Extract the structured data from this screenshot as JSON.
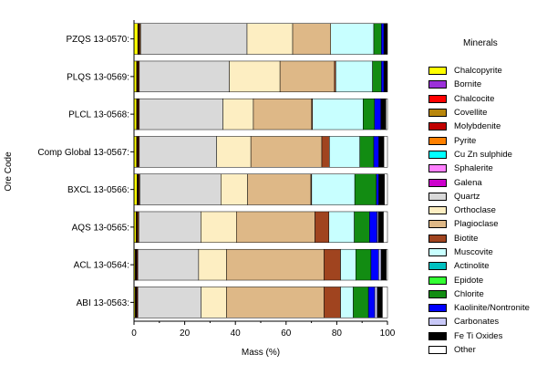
{
  "chart_data": {
    "type": "bar",
    "orientation": "horizontal",
    "stacked": true,
    "title": "",
    "xlabel": "Mass (%)",
    "ylabel": "Ore Code",
    "xlim": [
      0,
      100
    ],
    "xticks": [
      0,
      20,
      40,
      60,
      80,
      100
    ],
    "legend_title": "Minerals",
    "legend_position": "right",
    "grid": false,
    "categories": [
      "PZQS 13-0570:",
      "PLQS 13-0569:",
      "PLCL 13-0568:",
      "Comp Global 13-0567:",
      "BXCL 13-0566:",
      "AQS 13-0565:",
      "ACL 13-0564:",
      "ABI 13-0563:"
    ],
    "series": [
      {
        "name": "Chalcopyrite",
        "color": "#ffff00",
        "values": [
          1.5,
          1.0,
          1.0,
          1.0,
          1.2,
          0.8,
          0.5,
          0.5
        ]
      },
      {
        "name": "Bornite",
        "color": "#9b30d9",
        "values": [
          0.1,
          0.1,
          0.1,
          0.1,
          0.1,
          0.1,
          0.1,
          0.1
        ]
      },
      {
        "name": "Chalcocite",
        "color": "#ff0000",
        "values": [
          0.2,
          0.2,
          0.2,
          0.2,
          0.2,
          0.2,
          0.2,
          0.2
        ]
      },
      {
        "name": "Covellite",
        "color": "#b8860b",
        "values": [
          0.2,
          0.2,
          0.2,
          0.2,
          0.2,
          0.2,
          0.2,
          0.2
        ]
      },
      {
        "name": "Molybdenite",
        "color": "#c00000",
        "values": [
          0.3,
          0.3,
          0.3,
          0.3,
          0.3,
          0.3,
          0.3,
          0.3
        ]
      },
      {
        "name": "Pyrite",
        "color": "#ff8000",
        "values": [
          0.3,
          0.3,
          0.3,
          0.3,
          0.3,
          0.3,
          0.2,
          0.2
        ]
      },
      {
        "name": "Cu Zn sulphide",
        "color": "#00ffff",
        "values": [
          0.0,
          0.0,
          0.0,
          0.0,
          0.0,
          0.0,
          0.0,
          0.0
        ]
      },
      {
        "name": "Sphalerite",
        "color": "#ff80ff",
        "values": [
          0.0,
          0.0,
          0.0,
          0.0,
          0.0,
          0.0,
          0.0,
          0.0
        ]
      },
      {
        "name": "Galena",
        "color": "#cc00cc",
        "values": [
          0.0,
          0.0,
          0.0,
          0.0,
          0.0,
          0.0,
          0.0,
          0.0
        ]
      },
      {
        "name": "Quartz",
        "color": "#d9d9d9",
        "values": [
          42.0,
          35.5,
          33.0,
          30.5,
          32.0,
          24.5,
          24.0,
          25.0
        ]
      },
      {
        "name": "Orthoclase",
        "color": "#fdeec2",
        "values": [
          18.0,
          20.0,
          12.0,
          13.5,
          10.5,
          14.0,
          11.0,
          10.0
        ]
      },
      {
        "name": "Plagioclase",
        "color": "#deb887",
        "values": [
          15.0,
          21.5,
          23.0,
          28.0,
          25.0,
          31.0,
          38.5,
          38.5
        ]
      },
      {
        "name": "Biotite",
        "color": "#a0441f",
        "values": [
          0.0,
          0.5,
          0.3,
          3.0,
          0.3,
          5.5,
          6.5,
          6.5
        ]
      },
      {
        "name": "Muscovite",
        "color": "#c8ffff",
        "values": [
          17.0,
          14.5,
          20.0,
          12.0,
          17.0,
          10.0,
          6.0,
          5.0
        ]
      },
      {
        "name": "Actinolite",
        "color": "#00c0c0",
        "values": [
          0.0,
          0.0,
          0.0,
          0.0,
          0.0,
          0.0,
          0.0,
          0.0
        ]
      },
      {
        "name": "Epidote",
        "color": "#33ff33",
        "values": [
          0.0,
          0.0,
          0.0,
          0.0,
          0.0,
          0.0,
          0.0,
          0.0
        ]
      },
      {
        "name": "Chlorite",
        "color": "#128c12",
        "values": [
          3.0,
          3.5,
          4.5,
          5.5,
          8.5,
          6.0,
          6.0,
          6.0
        ]
      },
      {
        "name": "Kaolinite/Nontronite",
        "color": "#0000ff",
        "values": [
          1.0,
          1.0,
          2.5,
          2.0,
          1.0,
          3.0,
          3.0,
          2.5
        ]
      },
      {
        "name": "Carbonates",
        "color": "#c8c8f8",
        "values": [
          0.0,
          0.0,
          0.0,
          0.0,
          0.0,
          0.5,
          1.0,
          1.0
        ]
      },
      {
        "name": "Fe Ti Oxides",
        "color": "#000000",
        "values": [
          1.5,
          1.5,
          2.0,
          2.0,
          2.2,
          2.0,
          2.0,
          2.0
        ]
      },
      {
        "name": "Other",
        "color": "#ffffff",
        "values": [
          0.0,
          0.0,
          0.6,
          1.4,
          1.5,
          1.6,
          0.5,
          2.0
        ]
      }
    ]
  }
}
